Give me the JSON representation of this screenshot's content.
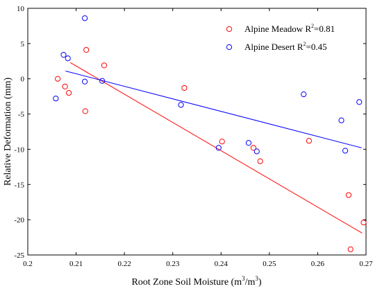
{
  "chart_data": {
    "type": "scatter",
    "xlabel": "Root Zone Soil Moisture (m³/m³)",
    "xlabel_parts": {
      "main": "Root Zone Soil Moisture (m",
      "sup1": "3",
      "mid": "/m",
      "sup2": "3",
      "end": ")"
    },
    "ylabel": "Relative Deformation (mm)",
    "xlim": [
      0.2,
      0.27
    ],
    "ylim": [
      -25,
      10
    ],
    "xticks": [
      0.2,
      0.21,
      0.22,
      0.23,
      0.24,
      0.25,
      0.26,
      0.27
    ],
    "xtick_labels": [
      "0.2",
      "0.21",
      "0.22",
      "0.23",
      "0.24",
      "0.25",
      "0.26",
      "0.27"
    ],
    "yticks": [
      -25,
      -20,
      -15,
      -10,
      -5,
      0,
      5,
      10
    ],
    "ytick_labels": [
      "-25",
      "-20",
      "-15",
      "-10",
      "-5",
      "0",
      "5",
      "10"
    ],
    "grid": false,
    "legend_position": "top-right",
    "series": [
      {
        "name": "Alpine Meadow",
        "r2_prefix": "R",
        "r2_sup": "2",
        "r2_value": "=0.81",
        "color": "#ff0000",
        "points": [
          {
            "x": 0.2062,
            "y": 0.0
          },
          {
            "x": 0.2077,
            "y": -1.1
          },
          {
            "x": 0.2085,
            "y": -2.0
          },
          {
            "x": 0.2119,
            "y": -4.6
          },
          {
            "x": 0.2121,
            "y": 4.1
          },
          {
            "x": 0.2158,
            "y": 1.9
          },
          {
            "x": 0.2324,
            "y": -1.3
          },
          {
            "x": 0.2402,
            "y": -8.9
          },
          {
            "x": 0.2467,
            "y": -9.8
          },
          {
            "x": 0.2481,
            "y": -11.7
          },
          {
            "x": 0.2582,
            "y": -8.8
          },
          {
            "x": 0.2664,
            "y": -16.5
          },
          {
            "x": 0.2668,
            "y": -24.2
          },
          {
            "x": 0.2695,
            "y": -20.4
          }
        ],
        "fit_line": [
          [
            0.2088,
            2.3
          ],
          [
            0.2692,
            -21.9
          ]
        ]
      },
      {
        "name": "Alpine Desert",
        "r2_prefix": "R",
        "r2_sup": "2",
        "r2_value": "=0.45",
        "color": "#0000ff",
        "points": [
          {
            "x": 0.2058,
            "y": -2.8
          },
          {
            "x": 0.2074,
            "y": 3.4
          },
          {
            "x": 0.2083,
            "y": 2.9
          },
          {
            "x": 0.2118,
            "y": 8.6
          },
          {
            "x": 0.2118,
            "y": -0.4
          },
          {
            "x": 0.2154,
            "y": -0.3
          },
          {
            "x": 0.2317,
            "y": -3.7
          },
          {
            "x": 0.2395,
            "y": -9.8
          },
          {
            "x": 0.2457,
            "y": -9.1
          },
          {
            "x": 0.2474,
            "y": -10.3
          },
          {
            "x": 0.2571,
            "y": -2.2
          },
          {
            "x": 0.2649,
            "y": -5.9
          },
          {
            "x": 0.2657,
            "y": -10.2
          },
          {
            "x": 0.2686,
            "y": -3.3
          }
        ],
        "fit_line": [
          [
            0.2078,
            1.1
          ],
          [
            0.2691,
            -9.8
          ]
        ]
      }
    ]
  }
}
